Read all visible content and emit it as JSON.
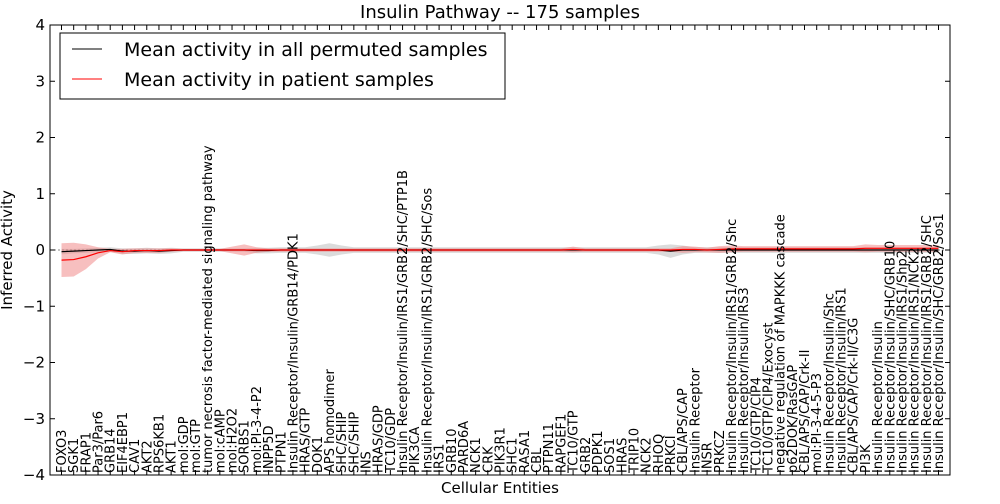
{
  "chart_data": {
    "type": "line",
    "title": "Insulin Pathway -- 175 samples",
    "xlabel": "Cellular Entities",
    "ylabel": "Inferred Activity",
    "ylim": [
      -4,
      4
    ],
    "yticks": [
      -4,
      -3,
      -2,
      -1,
      0,
      1,
      2,
      3,
      4
    ],
    "grid": false,
    "legend_position": "top-left",
    "categories": [
      "FOXO3",
      "SGK1",
      "FRAP1",
      "Par3/Par6",
      "GRB14",
      "EIF4EBP1",
      "CAV1",
      "AKT2",
      "RPS6KB1",
      "AKT1",
      "mol:GDP",
      "mol:GTP",
      "tumor necrosis factor-mediated signaling pathway",
      "mol:cAMP",
      "mol:H2O2",
      "SORBS1",
      "mol:PI-3-4-P2",
      "INPP5D",
      "PTPN1",
      "Insulin Receptor/Insulin/GRB14/PDK1",
      "HRAS/GTP",
      "DOK1",
      "APS homodimer",
      "SHC/SHIP",
      "SHC/SHIP",
      "INS",
      "HRAS/GDP",
      "TC10/GDP",
      "Insulin Receptor/Insulin/IRS1/GRB2/SHC/PTP1B",
      "PIK3CA",
      "Insulin Receptor/Insulin/IRS1/GRB2/SHC/Sos",
      "IRS1",
      "GRB10",
      "PARD6A",
      "NCK1",
      "CRK",
      "PIK3R1",
      "SHC1",
      "RASA1",
      "CBL",
      "PTPN11",
      "RAPGEF1",
      "TC10/GTP",
      "GRB2",
      "PDPK1",
      "SOS1",
      "HRAS",
      "TRIP10",
      "NCK2",
      "RHOQ",
      "PRKCI",
      "CBL/APS/CAP",
      "Insulin Receptor",
      "INSR",
      "PRKCZ",
      "Insulin Receptor/Insulin/IRS1/GRB2/Shc",
      "Insulin Receptor/Insulin/IRS3",
      "TC10/GTP/CIP4",
      "TC10/GTP/CIP4/Exocyst",
      "negative regulation of MAPKKK cascade",
      "p62DOK/RasGAP",
      "CBL/APS/CAP/Crk-II",
      "mol:PI-3-4-5-P3",
      "Insulin Receptor/Insulin/Shc",
      "Insulin Receptor/Insulin/IRS1",
      "CBL/APS/CAP/Crk-II/C3G",
      "PI3K",
      "Insulin Receptor/Insulin",
      "Insulin Receptor/Insulin/SHC/GRB10",
      "Insulin Receptor/Insulin/IRS1/Shp2",
      "Insulin Receptor/Insulin/IRS1/NCK2",
      "Insulin Receptor/Insulin/IRS1/GRB2/SHC",
      "Insulin Receptor/Insulin/SHC/GRB2/Sos1"
    ],
    "series": [
      {
        "name": "Mean activity in all permuted samples",
        "color": "#000000",
        "band_color": "#999999",
        "values": [
          -0.03,
          -0.02,
          -0.01,
          0,
          0.01,
          -0.02,
          -0.02,
          -0.01,
          -0.02,
          -0.01,
          0,
          0,
          0,
          0,
          0,
          0,
          -0.01,
          -0.01,
          0,
          0,
          0,
          0,
          0,
          0,
          0,
          0,
          0,
          0,
          0,
          0,
          0,
          0,
          0,
          0,
          0,
          0,
          0,
          0,
          0,
          0,
          0,
          0,
          0,
          0,
          0,
          0,
          0,
          0,
          0,
          0,
          -0.02,
          0,
          0,
          0,
          0,
          0,
          0,
          0,
          0,
          0,
          0,
          0,
          0,
          0,
          0,
          0,
          0,
          0,
          0,
          0,
          0,
          0,
          0
        ],
        "spread": [
          0.05,
          0.04,
          0.04,
          0.04,
          0.04,
          0.05,
          0.05,
          0.05,
          0.05,
          0.05,
          0.03,
          0.03,
          0.03,
          0.03,
          0.03,
          0.03,
          0.05,
          0.05,
          0.05,
          0.05,
          0.05,
          0.08,
          0.12,
          0.08,
          0.05,
          0.05,
          0.05,
          0.05,
          0.05,
          0.05,
          0.05,
          0.05,
          0.05,
          0.05,
          0.05,
          0.05,
          0.05,
          0.05,
          0.05,
          0.05,
          0.05,
          0.05,
          0.05,
          0.05,
          0.05,
          0.05,
          0.05,
          0.05,
          0.05,
          0.08,
          0.12,
          0.08,
          0.05,
          0.05,
          0.05,
          0.05,
          0.05,
          0.05,
          0.05,
          0.05,
          0.05,
          0.05,
          0.05,
          0.05,
          0.05,
          0.05,
          0.05,
          0.05,
          0.05,
          0.05,
          0.05,
          0.05,
          0.05
        ]
      },
      {
        "name": "Mean activity in patient samples",
        "color": "#ff0000",
        "band_color": "#f08080",
        "values": [
          -0.18,
          -0.17,
          -0.12,
          -0.05,
          -0.01,
          -0.03,
          -0.01,
          -0.01,
          -0.01,
          0,
          0,
          0,
          0,
          0,
          0,
          0,
          0,
          0,
          0,
          0,
          0,
          0,
          0,
          0,
          0,
          0,
          0,
          0,
          0,
          0,
          0,
          0,
          0,
          0,
          0,
          0,
          0,
          0,
          0,
          0,
          0,
          0,
          0.01,
          0,
          0,
          0,
          0,
          0,
          0,
          0,
          0,
          0.01,
          0.01,
          0,
          0.01,
          0.02,
          0.02,
          0.02,
          0.02,
          0.02,
          0.02,
          0.02,
          0.02,
          0.02,
          0.02,
          0.02,
          0.03,
          0.03,
          0.03,
          0.03,
          0.03,
          0.03,
          0.03
        ],
        "spread": [
          0.3,
          0.3,
          0.22,
          0.1,
          0.03,
          0.05,
          0.04,
          0.04,
          0.04,
          0.03,
          0.02,
          0.02,
          0.02,
          0.02,
          0.06,
          0.1,
          0.05,
          0.03,
          0.03,
          0.03,
          0.03,
          0.03,
          0.03,
          0.03,
          0.03,
          0.03,
          0.03,
          0.03,
          0.03,
          0.03,
          0.03,
          0.03,
          0.03,
          0.03,
          0.03,
          0.03,
          0.03,
          0.03,
          0.03,
          0.03,
          0.03,
          0.03,
          0.05,
          0.03,
          0.03,
          0.03,
          0.03,
          0.03,
          0.03,
          0.03,
          0.03,
          0.06,
          0.05,
          0.04,
          0.06,
          0.06,
          0.05,
          0.05,
          0.05,
          0.05,
          0.05,
          0.05,
          0.05,
          0.05,
          0.05,
          0.05,
          0.07,
          0.06,
          0.06,
          0.06,
          0.06,
          0.06,
          0.06
        ]
      }
    ]
  }
}
